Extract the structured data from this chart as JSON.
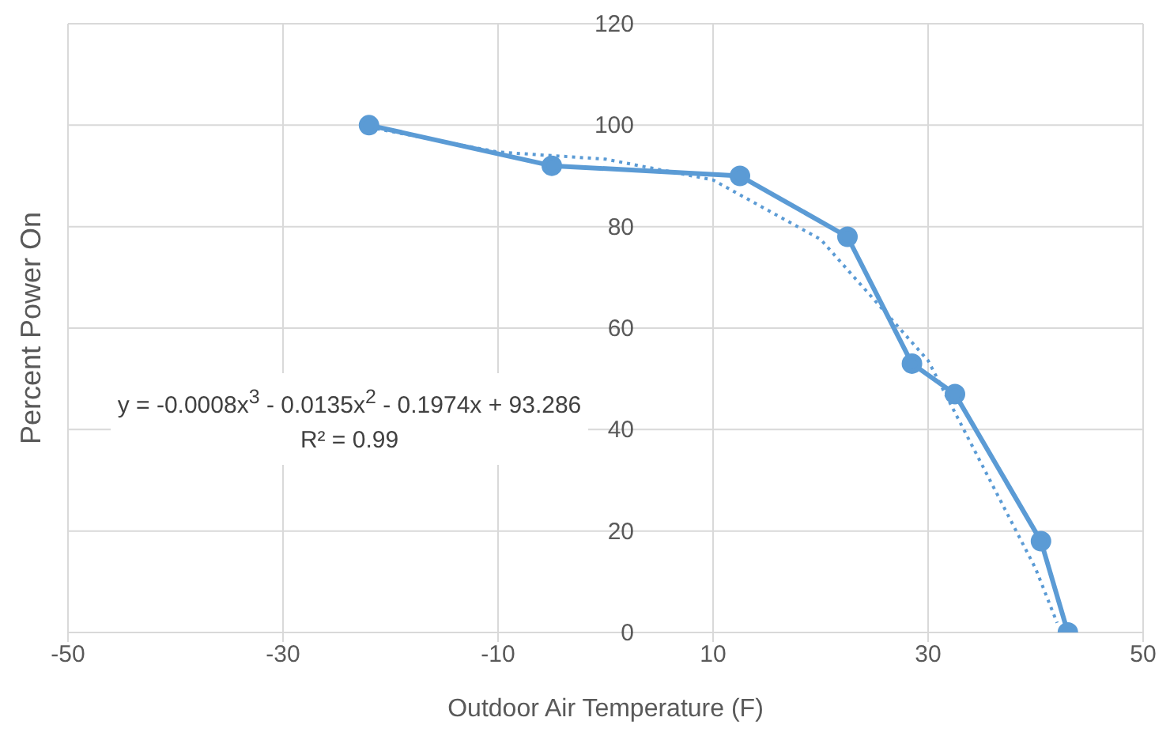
{
  "chart_data": {
    "type": "line",
    "xlabel": "Outdoor Air Temperature (F)",
    "ylabel": "Percent Power On",
    "xlim": [
      -50,
      50
    ],
    "xticks": [
      -50,
      -30,
      -10,
      10,
      30,
      50
    ],
    "ylim": [
      0,
      120
    ],
    "yticks": [
      0,
      20,
      40,
      60,
      80,
      100,
      120
    ],
    "grid": true,
    "legend": false,
    "annotations": [
      "y = -0.0008x$^{3}$ - 0.0135x$^{2}$ - 0.1974x + 93.286",
      "R² = 0.99"
    ],
    "series": [
      {
        "color": "#5b9bd5",
        "marker": "circle",
        "line_style": "solid",
        "x": [
          -22,
          -5,
          12.5,
          22.5,
          28.5,
          32.5,
          40.5,
          43
        ],
        "values": [
          100,
          92,
          90,
          78,
          53,
          47,
          18,
          0
        ]
      },
      {
        "color": "#5b9bd5",
        "marker": "none",
        "line_style": "dotted",
        "x": [
          -22,
          -10,
          0,
          10,
          20,
          30,
          40,
          42
        ],
        "values": [
          99.6,
          94.7,
          93.3,
          89.2,
          77.5,
          53.6,
          12.6,
          1.9
        ]
      }
    ]
  }
}
